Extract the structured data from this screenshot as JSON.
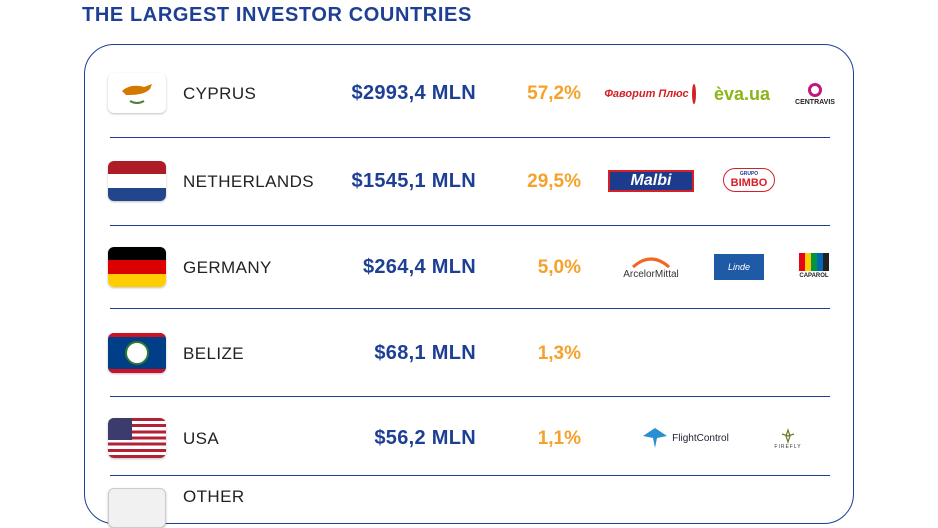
{
  "title": "THE LARGEST INVESTOR COUNTRIES",
  "rows": [
    {
      "country": "CYPRUS",
      "amount": "$2993,4 MLN",
      "percent": "57,2%",
      "logos": [
        "Фаворит Плюс",
        "èva.ua",
        "CENTRAVIS"
      ]
    },
    {
      "country": "NETHERLANDS",
      "amount": "$1545,1 MLN",
      "percent": "29,5%",
      "logos": [
        "Malbi",
        "BIMBO",
        "GRUPO"
      ]
    },
    {
      "country": "GERMANY",
      "amount": "$264,4 MLN",
      "percent": "5,0%",
      "logos": [
        "ArcelorMittal",
        "Linde",
        "CAPAROL"
      ]
    },
    {
      "country": "BELIZE",
      "amount": "$68,1 MLN",
      "percent": "1,3%",
      "logos": []
    },
    {
      "country": "USA",
      "amount": "$56,2 MLN",
      "percent": "1,1%",
      "logos": [
        "FlightControl",
        "FIREFLY"
      ]
    },
    {
      "country": "OTHER",
      "amount": "",
      "percent": "",
      "logos": []
    }
  ],
  "colors": {
    "navy": "#1d3f94",
    "orange": "#f6a12b"
  }
}
